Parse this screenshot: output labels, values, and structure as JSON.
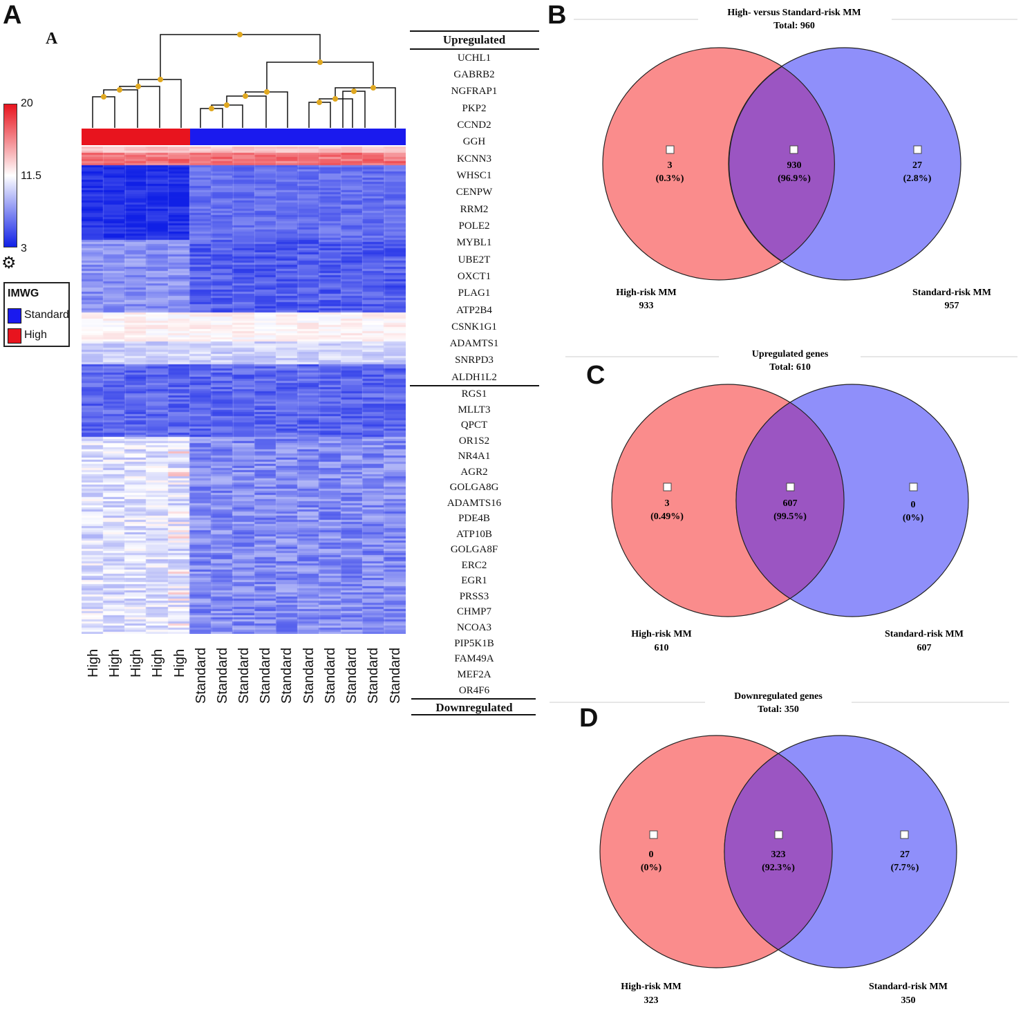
{
  "panel_letters": {
    "a": "A",
    "a_sub": "A",
    "b": "B",
    "c": "C",
    "d": "D"
  },
  "heatmap": {
    "color_scale": {
      "max": "20",
      "mid": "11.5",
      "min": "3",
      "high_color": "#e8141e",
      "low_color": "#1020e6",
      "mid_color": "#ffffff"
    },
    "settings_icon": "gear-icon",
    "legend": {
      "title": "IMWG",
      "items": [
        {
          "label": "Standard",
          "color": "#1a1aee"
        },
        {
          "label": "High",
          "color": "#e8141e"
        }
      ]
    },
    "columns": [
      "High",
      "High",
      "High",
      "High",
      "High",
      "Standard",
      "Standard",
      "Standard",
      "Standard",
      "Standard",
      "Standard",
      "Standard",
      "Standard",
      "Standard",
      "Standard"
    ],
    "header_up": "Upregulated",
    "header_down": "Downregulated",
    "genes_up": [
      "UCHL1",
      "GABRB2",
      "NGFRAP1",
      "PKP2",
      "CCND2",
      "GGH",
      "KCNN3",
      "WHSC1",
      "CENPW",
      "RRM2",
      "POLE2",
      "MYBL1",
      "UBE2T",
      "OXCT1",
      "PLAG1",
      "ATP2B4",
      "CSNK1G1",
      "ADAMTS1",
      "SNRPD3",
      "ALDH1L2"
    ],
    "genes_down": [
      "RGS1",
      "MLLT3",
      "QPCT",
      "OR1S2",
      "NR4A1",
      "AGR2",
      "GOLGA8G",
      "ADAMTS16",
      "PDE4B",
      "ATP10B",
      "GOLGA8F",
      "ERC2",
      "EGR1",
      "PRSS3",
      "CHMP7",
      "NCOA3",
      "PIP5K1B",
      "FAM49A",
      "MEF2A",
      "OR4F6"
    ]
  },
  "chart_data": [
    {
      "type": "venn",
      "title": "High- versus Standard-risk MM",
      "total_label": "Total: 960",
      "sets": [
        {
          "name": "High-risk MM",
          "size": "933",
          "color": "#fa8c8c"
        },
        {
          "name": "Standard-risk MM",
          "size": "957",
          "color": "#8f8ffa"
        }
      ],
      "regions": [
        {
          "count": "3",
          "percent": "(0.3%)"
        },
        {
          "count": "930",
          "percent": "(96.9%)"
        },
        {
          "count": "27",
          "percent": "(2.8%)"
        }
      ],
      "overlap_color": "#9b55c2"
    },
    {
      "type": "venn",
      "title": "Upregulated genes",
      "total_label": "Total: 610",
      "sets": [
        {
          "name": "High-risk MM",
          "size": "610",
          "color": "#fa8c8c"
        },
        {
          "name": "Standard-risk MM",
          "size": "607",
          "color": "#8f8ffa"
        }
      ],
      "regions": [
        {
          "count": "3",
          "percent": "(0.49%)"
        },
        {
          "count": "607",
          "percent": "(99.5%)"
        },
        {
          "count": "0",
          "percent": "(0%)"
        }
      ],
      "overlap_color": "#9b55c2"
    },
    {
      "type": "venn",
      "title": "Downregulated genes",
      "total_label": "Total: 350",
      "sets": [
        {
          "name": "High-risk MM",
          "size": "323",
          "color": "#fa8c8c"
        },
        {
          "name": "Standard-risk MM",
          "size": "350",
          "color": "#8f8ffa"
        }
      ],
      "regions": [
        {
          "count": "0",
          "percent": "(0%)"
        },
        {
          "count": "323",
          "percent": "(92.3%)"
        },
        {
          "count": "27",
          "percent": "(7.7%)"
        }
      ],
      "overlap_color": "#9b55c2"
    }
  ]
}
